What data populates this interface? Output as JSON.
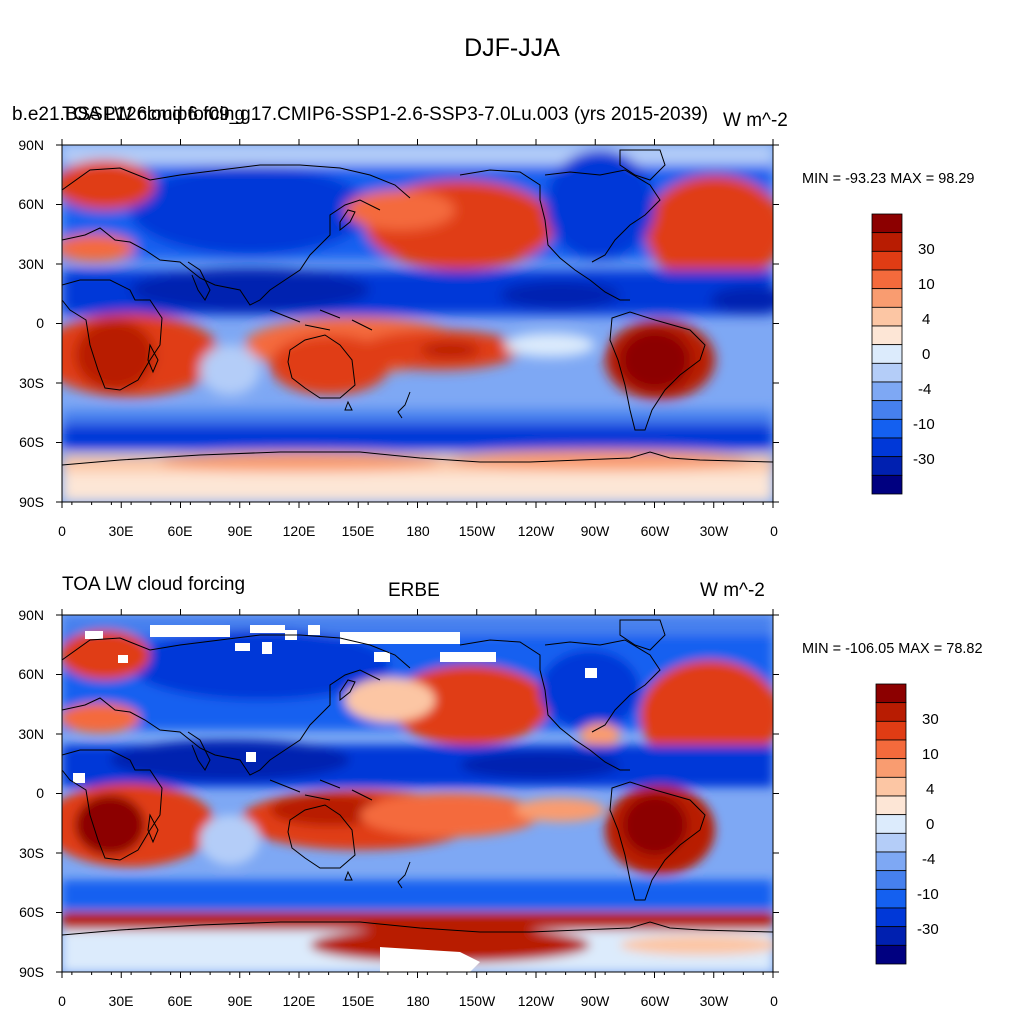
{
  "figure_title": "DJF-JJA",
  "palette": [
    "#000080",
    "#0020b0",
    "#0038d8",
    "#1460f0",
    "#4680ee",
    "#7ea8f4",
    "#b4cdf8",
    "#dcebfc",
    "#fde6d6",
    "#fcc6a4",
    "#f99c70",
    "#f46a3c",
    "#e03c14",
    "#b81c02",
    "#8c0000"
  ],
  "land_color": "#ffffff",
  "colorbar_labels": [
    "30",
    "10",
    "4",
    "0",
    "-4",
    "-10",
    "-30"
  ],
  "panels": [
    {
      "id": "model",
      "left_title": "b.e21.BSSP126cmip6.f09_g17.CMIP6-SSP1-2.6-SSP3-7.0Lu.003 (yrs 2015-2039)",
      "left_title_overlap": "TOA LW cloud forcing",
      "center_title": "",
      "right_title": "W m^-2",
      "min_max": "MIN = -93.23 MAX =  98.29"
    },
    {
      "id": "obs",
      "left_title": "TOA LW cloud forcing",
      "center_title": "ERBE",
      "right_title": "W m^-2",
      "min_max": "MIN = -106.05 MAX =  78.82"
    }
  ],
  "lat_labels": [
    "90N",
    "60N",
    "30N",
    "0",
    "30S",
    "60S",
    "90S"
  ],
  "lon_labels": [
    "0",
    "30E",
    "60E",
    "90E",
    "120E",
    "150E",
    "180",
    "150W",
    "120W",
    "90W",
    "60W",
    "30W",
    "0"
  ]
}
